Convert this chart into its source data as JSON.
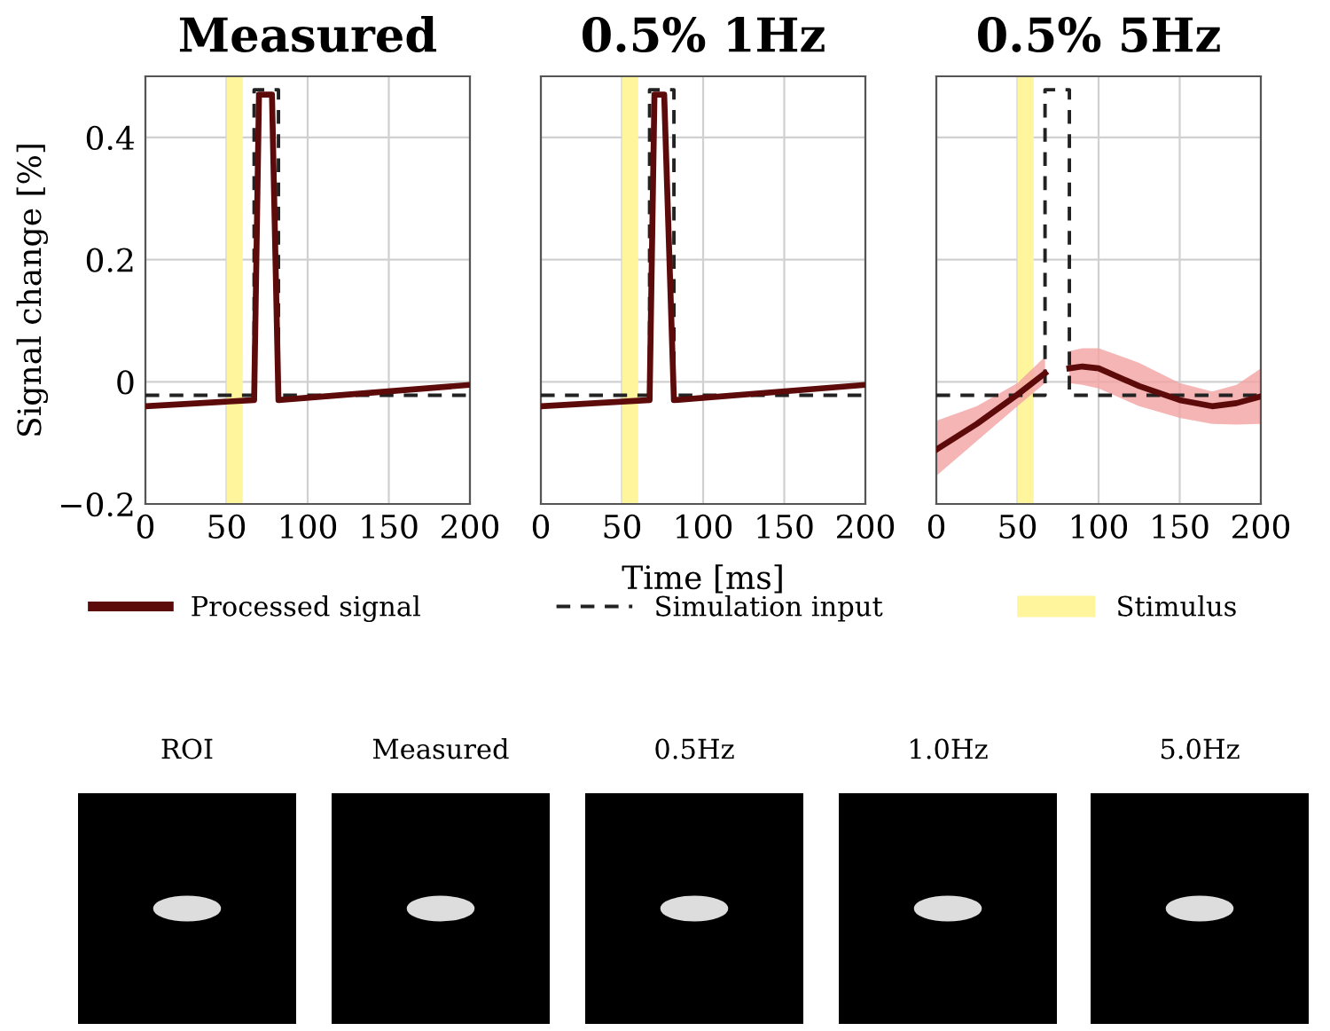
{
  "chart_data": [
    {
      "type": "line",
      "title": "Measured",
      "ylabel": "Signal change [%]",
      "xlim": [
        0,
        200
      ],
      "ylim": [
        -0.2,
        0.5
      ],
      "xticks": [
        0,
        50,
        100,
        150,
        200
      ],
      "yticks": [
        -0.2,
        0,
        0.2,
        0.4
      ],
      "grid": true,
      "legend": "bottom",
      "bands": [
        {
          "axis": "x",
          "from": 50,
          "to": 60,
          "label": "Stimulus",
          "color": "#fff59d"
        }
      ],
      "series": [
        {
          "name": "Processed signal",
          "color": "#5c0a0a",
          "line_style": "solid",
          "x": [
            0,
            67,
            70,
            78,
            82,
            200
          ],
          "values": [
            -0.04,
            -0.03,
            0.47,
            0.47,
            -0.03,
            -0.005
          ]
        },
        {
          "name": "Simulation input",
          "color": "#222222",
          "line_style": "dashed",
          "x": [
            0,
            67,
            67,
            82,
            82,
            200
          ],
          "values": [
            -0.022,
            -0.022,
            0.478,
            0.478,
            -0.022,
            -0.022
          ]
        }
      ]
    },
    {
      "type": "line",
      "title": "0.5% 1Hz",
      "xlabel": "Time [ms]",
      "xlim": [
        0,
        200
      ],
      "ylim": [
        -0.2,
        0.5
      ],
      "xticks": [
        0,
        50,
        100,
        150,
        200
      ],
      "yticks": [
        -0.2,
        0,
        0.2,
        0.4
      ],
      "grid": true,
      "tick_labels": "x",
      "bands": [
        {
          "axis": "x",
          "from": 50,
          "to": 60,
          "color": "#fff59d"
        }
      ],
      "series": [
        {
          "color": "#5c0a0a",
          "line_style": "solid",
          "x": [
            0,
            67,
            70,
            76,
            82,
            200
          ],
          "values": [
            -0.04,
            -0.03,
            0.47,
            0.47,
            -0.03,
            -0.005
          ]
        },
        {
          "color": "#222222",
          "line_style": "dashed",
          "x": [
            0,
            67,
            67,
            82,
            82,
            200
          ],
          "values": [
            -0.022,
            -0.022,
            0.478,
            0.478,
            -0.022,
            -0.022
          ]
        }
      ]
    },
    {
      "type": "line",
      "title": "0.5% 5Hz",
      "xlim": [
        0,
        200
      ],
      "ylim": [
        -0.2,
        0.5
      ],
      "xticks": [
        0,
        50,
        100,
        150,
        200
      ],
      "yticks": [
        -0.2,
        0,
        0.2,
        0.4
      ],
      "grid": true,
      "tick_labels": "x",
      "bands": [
        {
          "axis": "x",
          "from": 50,
          "to": 60,
          "color": "#fff59d"
        }
      ],
      "series": [
        {
          "color": "#5c0a0a",
          "line_style": "solid",
          "x": [
            0,
            25,
            50,
            67,
            71,
            77,
            82,
            90,
            100,
            125,
            150,
            170,
            185,
            200
          ],
          "values": [
            -0.111,
            -0.069,
            -0.021,
            0.014,
            null,
            null,
            0.022,
            0.025,
            0.022,
            -0.007,
            -0.03,
            -0.04,
            -0.035,
            -0.024
          ],
          "lower": [
            -0.154,
            -0.097,
            -0.04,
            -0.002,
            null,
            null,
            -0.002,
            -0.005,
            -0.011,
            -0.04,
            -0.059,
            -0.069,
            -0.07,
            -0.069
          ],
          "upper": [
            -0.064,
            -0.04,
            -0.002,
            0.041,
            null,
            null,
            0.05,
            0.055,
            0.055,
            0.031,
            -0.002,
            -0.016,
            -0.005,
            0.022
          ]
        },
        {
          "color": "#222222",
          "line_style": "dashed",
          "x": [
            0,
            67,
            67,
            82,
            82,
            200
          ],
          "values": [
            -0.022,
            -0.022,
            0.478,
            0.478,
            -0.022,
            -0.022
          ]
        }
      ]
    },
    {
      "type": "other",
      "annotations": [
        "ROI",
        "Measured",
        "0.5Hz",
        "1.0Hz",
        "5.0Hz"
      ]
    }
  ]
}
